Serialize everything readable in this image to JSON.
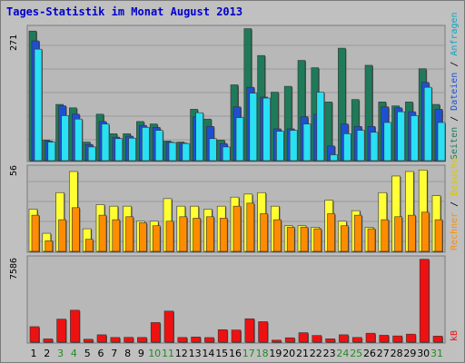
{
  "title": "Tages-Statistik im Monat August 2013",
  "colors": {
    "background": "#c0c0c0",
    "plot_bg": "#b8b8b8",
    "seiten": "#1f7a5a",
    "dateien": "#1f4fd1",
    "anfragen": "#29e0f4",
    "besuche": "#ffff33",
    "rechner": "#ff8c00",
    "kb": "#ee1111",
    "title": "#0000cc",
    "weekend_tick": "#228b22"
  },
  "labels": {
    "panel1_max": "271",
    "panel2_max": "56",
    "panel3_max": "7586",
    "right1_seiten": "Seiten",
    "right1_sep1": " / ",
    "right1_dateien": "Dateien",
    "right1_sep2": " / ",
    "right1_anfragen": "Anfragen",
    "right2_rechner": "Rechner",
    "right2_sep": " / ",
    "right2_besuche": "Besuche",
    "right3_kb": "kB"
  },
  "chart_data": {
    "type": "bar",
    "title": "Tages-Statistik im Monat August 2013",
    "categories": [
      "1",
      "2",
      "3",
      "4",
      "5",
      "6",
      "7",
      "8",
      "9",
      "10",
      "11",
      "12",
      "13",
      "14",
      "15",
      "16",
      "17",
      "18",
      "19",
      "20",
      "21",
      "22",
      "23",
      "24",
      "25",
      "26",
      "27",
      "28",
      "29",
      "30",
      "31"
    ],
    "weekend_days": [
      "3",
      "4",
      "10",
      "11",
      "17",
      "18",
      "24",
      "25",
      "31"
    ],
    "panels": [
      {
        "max_label": "271",
        "ymax": 271,
        "series": [
          {
            "name": "Seiten",
            "values": [
              265,
              42,
              115,
              108,
              38,
              95,
              55,
              55,
              80,
              75,
              40,
              38,
              105,
              85,
              42,
              155,
              270,
              215,
              140,
              152,
              205,
              190,
              120,
              230,
              125,
              195,
              120,
              112,
              120,
              188,
              115
            ]
          },
          {
            "name": "Dateien",
            "values": [
              245,
              40,
              112,
              95,
              33,
              80,
              48,
              50,
              72,
              68,
              38,
              36,
              90,
              70,
              35,
              110,
              150,
              130,
              65,
              65,
              90,
              95,
              30,
              75,
              70,
              70,
              110,
              108,
              100,
              160,
              105
            ]
          },
          {
            "name": "Anfragen",
            "values": [
              228,
              38,
              92,
              85,
              28,
              75,
              45,
              46,
              68,
              62,
              37,
              35,
              98,
              45,
              28,
              88,
              138,
              128,
              60,
              62,
              75,
              140,
              12,
              55,
              62,
              58,
              78,
              100,
              92,
              150,
              78
            ]
          }
        ]
      },
      {
        "max_label": "56",
        "ymax": 56,
        "series": [
          {
            "name": "Besuche",
            "values": [
              28,
              12,
              39,
              53,
              15,
              31,
              30,
              30,
              20,
              20,
              35,
              30,
              30,
              28,
              30,
              36,
              38,
              39,
              30,
              17,
              17,
              16,
              34,
              20,
              27,
              16,
              39,
              50,
              53,
              54,
              37
            ]
          },
          {
            "name": "Rechner",
            "values": [
              24,
              7,
              21,
              29,
              8,
              24,
              21,
              23,
              19,
              17,
              20,
              23,
              22,
              23,
              22,
              30,
              32,
              25,
              21,
              16,
              16,
              15,
              25,
              17,
              24,
              15,
              21,
              23,
              24,
              26,
              21
            ]
          }
        ]
      },
      {
        "max_label": "7586",
        "ymax": 7586,
        "series": [
          {
            "name": "kB",
            "values": [
              1390,
              290,
              2070,
              2870,
              260,
              660,
              420,
              430,
              420,
              1760,
              2790,
              420,
              460,
              410,
              1120,
              1090,
              2100,
              1840,
              180,
              390,
              850,
              600,
              300,
              660,
              420,
              800,
              620,
              560,
              720,
              7450,
              540
            ]
          }
        ]
      }
    ]
  }
}
